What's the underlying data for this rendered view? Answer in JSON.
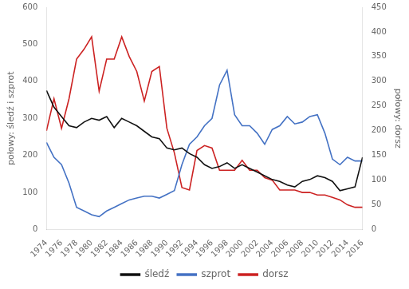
{
  "chart_data": {
    "type": "line",
    "x": [
      1974,
      1975,
      1976,
      1977,
      1978,
      1979,
      1980,
      1981,
      1982,
      1983,
      1984,
      1985,
      1986,
      1987,
      1988,
      1989,
      1990,
      1991,
      1992,
      1993,
      1994,
      1995,
      1996,
      1997,
      1998,
      1999,
      2000,
      2001,
      2002,
      2003,
      2004,
      2005,
      2006,
      2007,
      2008,
      2009,
      2010,
      2011,
      2012,
      2013,
      2014,
      2015,
      2016
    ],
    "series": [
      {
        "name": "śledź",
        "color": "#111111",
        "values": [
          375,
          330,
          305,
          280,
          275,
          290,
          300,
          295,
          305,
          275,
          300,
          290,
          280,
          265,
          250,
          245,
          220,
          215,
          220,
          205,
          195,
          175,
          165,
          170,
          180,
          165,
          175,
          165,
          155,
          145,
          135,
          130,
          120,
          115,
          130,
          135,
          145,
          140,
          130,
          105,
          110,
          115,
          195
        ]
      },
      {
        "name": "szprot",
        "color": "#4472c4",
        "values": [
          235,
          195,
          175,
          125,
          60,
          50,
          40,
          35,
          50,
          60,
          70,
          80,
          85,
          90,
          90,
          85,
          95,
          105,
          175,
          230,
          250,
          280,
          300,
          390,
          430,
          310,
          280,
          280,
          260,
          230,
          270,
          280,
          305,
          285,
          290,
          305,
          310,
          260,
          190,
          175,
          195,
          185,
          185
        ]
      },
      {
        "name": "dorsz",
        "color": "#cc2222",
        "axis": "y2",
        "values": [
          200,
          265,
          205,
          265,
          345,
          365,
          390,
          280,
          345,
          345,
          390,
          350,
          320,
          260,
          320,
          330,
          205,
          155,
          85,
          80,
          160,
          170,
          165,
          120,
          120,
          120,
          140,
          120,
          120,
          105,
          100,
          80,
          80,
          80,
          75,
          75,
          70,
          70,
          65,
          60,
          50,
          45,
          45
        ]
      }
    ],
    "ylabel": "połowy: śledź i szprot",
    "y2label": "połowy: dorsz",
    "xlim": [
      1974,
      2016
    ],
    "xticks": [
      1974,
      1976,
      1978,
      1980,
      1982,
      1984,
      1986,
      1988,
      1990,
      1992,
      1994,
      1996,
      1998,
      2000,
      2002,
      2004,
      2006,
      2008,
      2010,
      2012,
      2014,
      2016
    ],
    "ylim": [
      0,
      600
    ],
    "yticks": [
      0,
      100,
      200,
      300,
      400,
      500,
      600
    ],
    "y2lim": [
      0,
      450
    ],
    "y2ticks": [
      0,
      50,
      100,
      150,
      200,
      250,
      300,
      350,
      400,
      450
    ],
    "grid": false,
    "legend": "bottom"
  }
}
